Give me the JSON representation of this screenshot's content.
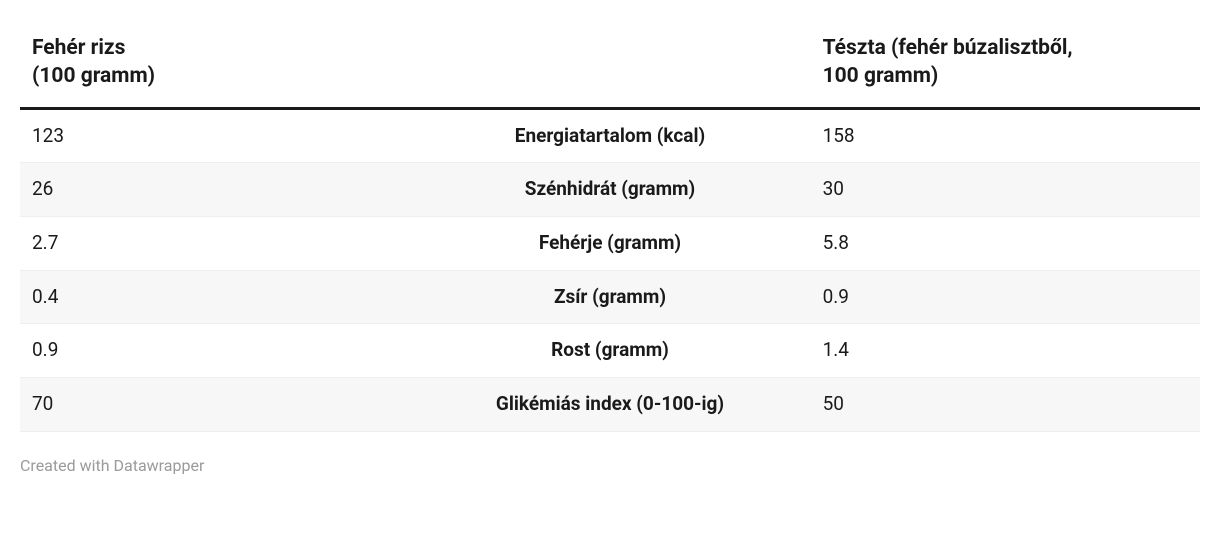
{
  "table": {
    "type": "table",
    "background_color": "#ffffff",
    "zebra_odd_bg": "#ffffff",
    "zebra_even_bg": "#f7f7f7",
    "header_border_color": "#1a1a1a",
    "row_border_color": "#eeeeee",
    "text_color": "#1a1a1a",
    "header_fontsize": 21,
    "body_fontsize": 19,
    "columns": {
      "left": "Fehér rizs\n(100 gramm)",
      "middle": "",
      "right": "Tészta (fehér búzalisztből, 100 gramm)"
    },
    "rows": [
      {
        "left": "123",
        "label": "Energiatartalom (kcal)",
        "right": "158"
      },
      {
        "left": "26",
        "label": "Szénhidrát (gramm)",
        "right": "30"
      },
      {
        "left": "2.7",
        "label": "Fehérje (gramm)",
        "right": "5.8"
      },
      {
        "left": "0.4",
        "label": "Zsír (gramm)",
        "right": "0.9"
      },
      {
        "left": "0.9",
        "label": "Rost (gramm)",
        "right": "1.4"
      },
      {
        "left": "70",
        "label": "Glikémiás index (0-100-ig)",
        "right": "50"
      }
    ]
  },
  "footer": {
    "attribution": "Created with Datawrapper",
    "color": "#9a9a9a",
    "fontsize": 16
  }
}
